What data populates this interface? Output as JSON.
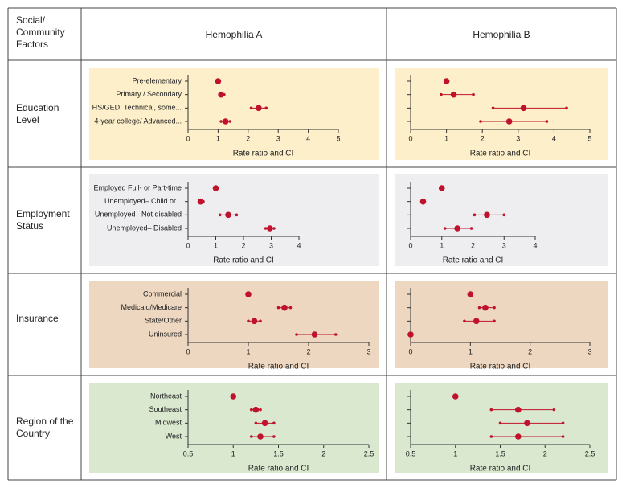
{
  "table": {
    "header": [
      "Social/\nCommunity\nFactors",
      "Hemophilia A",
      "Hemophilia B"
    ],
    "rows": [
      "Education\nLevel",
      "Employment\nStatus",
      "Insurance",
      "Region of the\nCountry"
    ]
  },
  "chart_data": [
    {
      "type": "forest",
      "background": "#fdefc9",
      "color": "#c0122c",
      "xlabel": "Rate ratio and CI",
      "categories": [
        "Pre-elementary",
        "Primary / Secondary",
        "HS/GED, Technical, some...",
        "4-year college/ Advanced..."
      ],
      "values": [
        1.0,
        1.1,
        2.35,
        1.25
      ],
      "ci_low": [
        null,
        1.05,
        2.1,
        1.1
      ],
      "ci_high": [
        null,
        1.2,
        2.6,
        1.4
      ],
      "xlim": [
        0,
        5
      ],
      "xticks": [
        0,
        1,
        2,
        3,
        4,
        5
      ]
    },
    {
      "type": "forest",
      "background": "#fdefc9",
      "color": "#c0122c",
      "xlabel": "Rate ratio and CI",
      "values": [
        1.0,
        1.2,
        3.15,
        2.75
      ],
      "ci_low": [
        null,
        0.85,
        2.3,
        1.95
      ],
      "ci_high": [
        null,
        1.75,
        4.35,
        3.8
      ],
      "xlim": [
        0,
        5
      ],
      "xticks": [
        0,
        1,
        2,
        3,
        4,
        5
      ]
    },
    {
      "type": "forest",
      "background": "#eeedf0",
      "color": "#c0122c",
      "xlabel": "Rate ratio and CI",
      "categories": [
        "Employed Full- or Part-time",
        "Unemployed– Child or...",
        "Unemployed– Not disabled",
        "Unemployed– Disabled"
      ],
      "values": [
        1.0,
        0.45,
        1.45,
        2.95
      ],
      "ci_low": [
        null,
        0.4,
        1.15,
        2.8
      ],
      "ci_high": [
        null,
        0.55,
        1.75,
        3.1
      ],
      "xlim": [
        0,
        4
      ],
      "xticks": [
        0,
        1,
        2,
        3,
        4
      ]
    },
    {
      "type": "forest",
      "background": "#eeedf0",
      "color": "#c0122c",
      "xlabel": "Rate ratio and CI",
      "values": [
        1.0,
        0.4,
        2.45,
        1.5
      ],
      "ci_low": [
        null,
        null,
        2.05,
        1.1
      ],
      "ci_high": [
        null,
        null,
        3.0,
        1.95
      ],
      "xlim": [
        0,
        4
      ],
      "xticks": [
        0,
        1,
        2,
        3,
        4
      ]
    },
    {
      "type": "forest",
      "background": "#eed7c0",
      "color": "#c0122c",
      "xlabel": "Rate ratio and CI",
      "categories": [
        "Commercial",
        "Medicaid/Medicare",
        "State/Other",
        "Uninsured"
      ],
      "values": [
        1.0,
        1.6,
        1.1,
        2.1
      ],
      "ci_low": [
        null,
        1.5,
        1.0,
        1.8
      ],
      "ci_high": [
        null,
        1.7,
        1.2,
        2.45
      ],
      "xlim": [
        0,
        3
      ],
      "xticks": [
        0,
        1,
        2,
        3
      ]
    },
    {
      "type": "forest",
      "background": "#eed7c0",
      "color": "#c0122c",
      "xlabel": "Rate ratio and CI",
      "values": [
        1.0,
        1.25,
        1.1,
        0.0
      ],
      "ci_low": [
        null,
        1.15,
        0.9,
        null
      ],
      "ci_high": [
        null,
        1.4,
        1.4,
        null
      ],
      "xlim": [
        0,
        3
      ],
      "xticks": [
        0,
        1,
        2,
        3
      ]
    },
    {
      "type": "forest",
      "background": "#d9e8cf",
      "color": "#c0122c",
      "xlabel": "Rate ratio and CI",
      "categories": [
        "Northeast",
        "Southeast",
        "Midwest",
        "West"
      ],
      "values": [
        1.0,
        1.25,
        1.35,
        1.3
      ],
      "ci_low": [
        null,
        1.2,
        1.25,
        1.2
      ],
      "ci_high": [
        null,
        1.3,
        1.45,
        1.45
      ],
      "xlim": [
        0.5,
        2.5
      ],
      "xticks": [
        0.5,
        1,
        1.5,
        2,
        2.5
      ]
    },
    {
      "type": "forest",
      "background": "#d9e8cf",
      "color": "#c0122c",
      "xlabel": "Rate ratio and CI",
      "values": [
        1.0,
        1.7,
        1.8,
        1.7
      ],
      "ci_low": [
        null,
        1.4,
        1.5,
        1.4
      ],
      "ci_high": [
        null,
        2.1,
        2.2,
        2.2
      ],
      "xlim": [
        0.5,
        2.5
      ],
      "xticks": [
        0.5,
        1,
        1.5,
        2,
        2.5
      ]
    }
  ]
}
